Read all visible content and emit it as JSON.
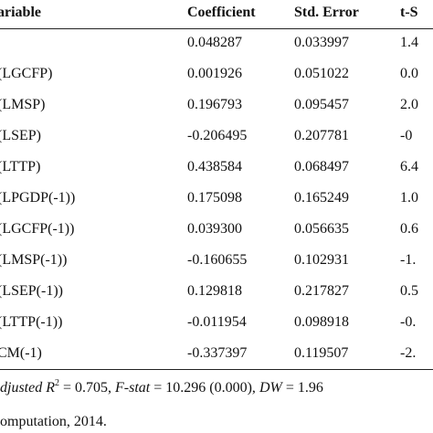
{
  "table": {
    "headers": [
      "ariable",
      "Coefficient",
      "Std. Error",
      "t-S"
    ],
    "rows": [
      {
        "coefficient": "0.048287",
        "std_error": "0.033997",
        "t_stat": "1.4"
      },
      {
        "variable": "(LGCFP)",
        "coefficient": "0.001926",
        "std_error": "0.051022",
        "t_stat": "0.0"
      },
      {
        "variable": "(LMSP)",
        "coefficient": "0.196793",
        "std_error": "0.095457",
        "t_stat": "2.0"
      },
      {
        "variable": "(LSEP)",
        "coefficient": "-0.206495",
        "std_error": "0.207781",
        "t_stat": "-0"
      },
      {
        "variable": "(LTTP)",
        "coefficient": "0.438584",
        "std_error": "0.068497",
        "t_stat": "6.4"
      },
      {
        "variable": "(LPGDP(-1))",
        "coefficient": "0.175098",
        "std_error": "0.165249",
        "t_stat": "1.0"
      },
      {
        "variable": "(LGCFP(-1))",
        "coefficient": "0.039300",
        "std_error": "0.056635",
        "t_stat": "0.6"
      },
      {
        "variable": "(LMSP(-1))",
        "coefficient": "-0.160655",
        "std_error": "0.102931",
        "t_stat": "-1."
      },
      {
        "variable": "(LSEP(-1))",
        "coefficient": "0.129818",
        "std_error": "0.217827",
        "t_stat": "0.5"
      },
      {
        "variable": "(LTTP(-1))",
        "coefficient": "-0.011954",
        "std_error": "0.098918",
        "t_stat": "-0."
      },
      {
        "variable": "CM(-1)",
        "coefficient": "-0.337397",
        "std_error": "0.119507",
        "t_stat": "-2."
      }
    ],
    "note": [
      {
        "text": "djusted R",
        "style": "italic"
      },
      {
        "text": "2",
        "style": "sup"
      },
      {
        "text": " = 0.705, ",
        "style": "normal"
      },
      {
        "text": "F-stat",
        "style": "italic"
      },
      {
        "text": " = 10.296 (0.000), ",
        "style": "normal"
      },
      {
        "text": "DW",
        "style": "italic"
      },
      {
        "text": " = 1.96",
        "style": "normal"
      }
    ],
    "source": "omputation, 2014."
  }
}
